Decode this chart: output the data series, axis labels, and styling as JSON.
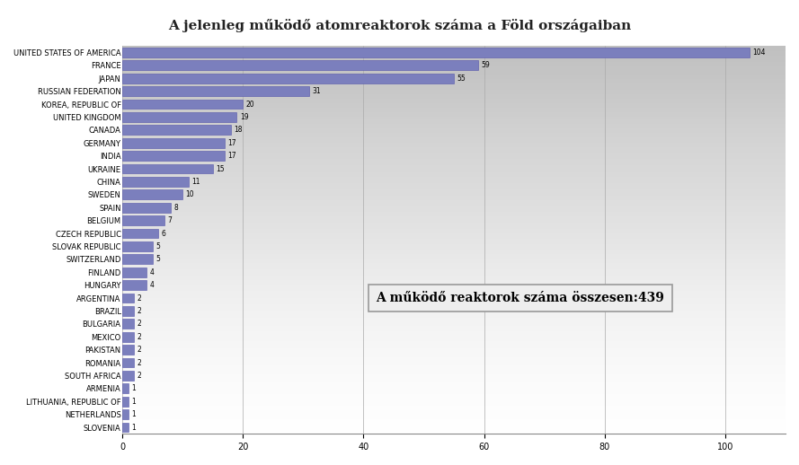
{
  "title": "A jelenleg működő atomreaktorok száma a Föld országaiban",
  "annotation": "A működő reaktorok száma összesen:439",
  "countries": [
    "UNITED STATES OF AMERICA",
    "FRANCE",
    "JAPAN",
    "RUSSIAN FEDERATION",
    "KOREA, REPUBLIC OF",
    "UNITED KINGDOM",
    "CANADA",
    "GERMANY",
    "INDIA",
    "UKRAINE",
    "CHINA",
    "SWEDEN",
    "SPAIN",
    "BELGIUM",
    "CZECH REPUBLIC",
    "SLOVAK REPUBLIC",
    "SWITZERLAND",
    "FINLAND",
    "HUNGARY",
    "ARGENTINA",
    "BRAZIL",
    "BULGARIA",
    "MEXICO",
    "PAKISTAN",
    "ROMANIA",
    "SOUTH AFRICA",
    "ARMENIA",
    "LITHUANIA, REPUBLIC OF",
    "NETHERLANDS",
    "SLOVENIA"
  ],
  "values": [
    104,
    59,
    55,
    31,
    20,
    19,
    18,
    17,
    17,
    15,
    11,
    10,
    8,
    7,
    6,
    5,
    5,
    4,
    4,
    2,
    2,
    2,
    2,
    2,
    2,
    2,
    1,
    1,
    1,
    1
  ],
  "bar_color": "#7b7fbd",
  "bar_edge_color": "#5555aa",
  "bg_color": "#ffffff",
  "plot_bg_top": "#f0f0f0",
  "plot_bg_bottom": "#c8c8c8",
  "xlim": [
    0,
    110
  ],
  "xticks": [
    0,
    20,
    40,
    60,
    80,
    100
  ],
  "title_fontsize": 11,
  "label_fontsize": 6,
  "value_fontsize": 5.5,
  "annotation_fontsize": 10,
  "annotation_box_color": "#eeeeee",
  "annotation_box_edge": "#999999"
}
